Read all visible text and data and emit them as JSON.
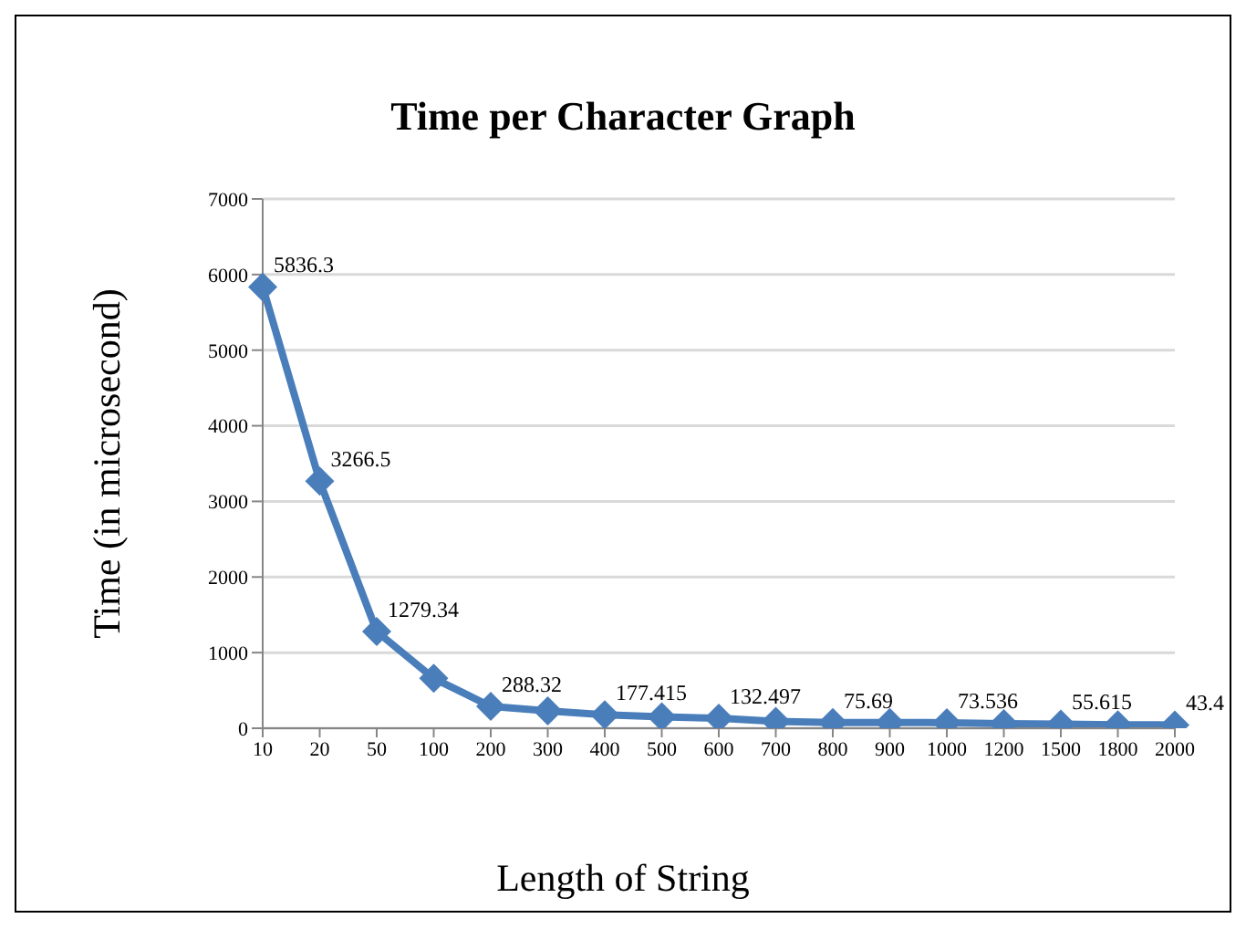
{
  "chart_data": {
    "type": "line",
    "title": "Time per Character Graph",
    "xlabel": "Length of String",
    "ylabel": "Time (in microsecond)",
    "categories": [
      "10",
      "20",
      "50",
      "100",
      "200",
      "300",
      "400",
      "500",
      "600",
      "700",
      "800",
      "900",
      "1000",
      "1200",
      "1500",
      "1800",
      "2000"
    ],
    "series": [
      {
        "color": "#4a7ebb",
        "values": [
          5836.3,
          3266.5,
          1279.34,
          660,
          288.32,
          230,
          177.415,
          150,
          132.497,
          90,
          75.69,
          75,
          73.536,
          60,
          55.615,
          45,
          43.4
        ],
        "value_labels": [
          "5836.3",
          "3266.5",
          "1279.34",
          null,
          "288.32",
          null,
          "177.415",
          null,
          "132.497",
          null,
          "75.69",
          null,
          "73.536",
          null,
          "55.615",
          null,
          "43.4"
        ]
      }
    ],
    "ylim": [
      0,
      7000
    ],
    "yticks": [
      0,
      1000,
      2000,
      3000,
      4000,
      5000,
      6000,
      7000
    ],
    "grid": "y",
    "legend": false,
    "marker": "diamond",
    "line_style": "solid"
  }
}
